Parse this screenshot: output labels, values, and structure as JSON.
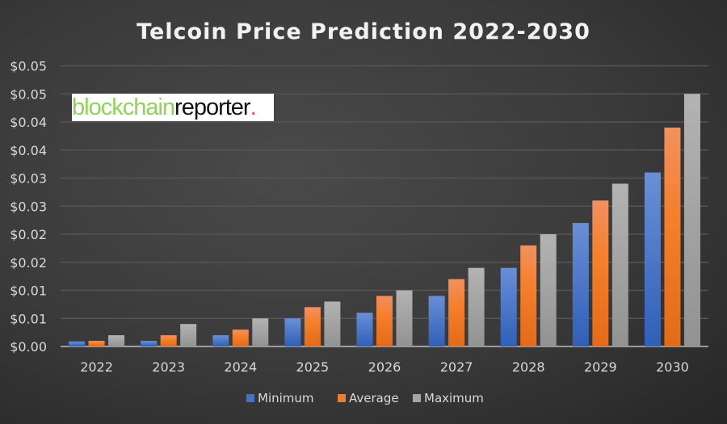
{
  "chart_data": {
    "type": "bar",
    "title": "Telcoin Price Prediction 2022-2030",
    "xlabel": "",
    "ylabel": "",
    "ylim": [
      0,
      0.05
    ],
    "yticks": [
      0,
      0.005,
      0.01,
      0.015,
      0.02,
      0.025,
      0.03,
      0.035,
      0.04,
      0.045,
      0.05
    ],
    "ytick_labels": [
      "$0.00",
      "$0.01",
      "$0.01",
      "$0.02",
      "$0.02",
      "$0.03",
      "$0.03",
      "$0.04",
      "$0.04",
      "$0.05",
      "$0.05"
    ],
    "grid": true,
    "legend_position": "bottom",
    "categories": [
      "2022",
      "2023",
      "2024",
      "2025",
      "2026",
      "2027",
      "2028",
      "2029",
      "2030"
    ],
    "series": [
      {
        "name": "Minimum",
        "color": "#4472c4",
        "values": [
          0.0009,
          0.001,
          0.002,
          0.005,
          0.006,
          0.009,
          0.014,
          0.022,
          0.031
        ]
      },
      {
        "name": "Average",
        "color": "#ed7d31",
        "values": [
          0.001,
          0.002,
          0.003,
          0.007,
          0.009,
          0.012,
          0.018,
          0.026,
          0.039
        ]
      },
      {
        "name": "Maximum",
        "color": "#a5a5a5",
        "values": [
          0.002,
          0.004,
          0.005,
          0.008,
          0.01,
          0.014,
          0.02,
          0.029,
          0.045
        ]
      }
    ]
  },
  "watermark": {
    "part1": "blockchain",
    "part2": "reporter",
    "part3": "."
  }
}
